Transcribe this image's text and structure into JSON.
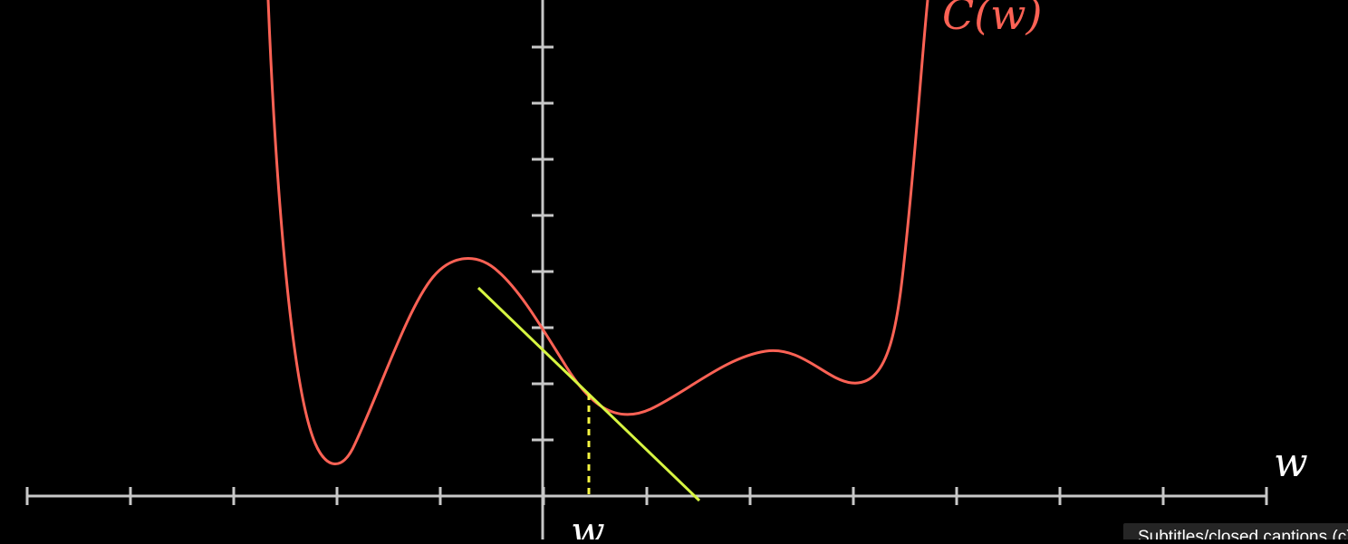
{
  "diagram": {
    "curve_label": "C(w)",
    "x_axis_label": "w",
    "point_label": "w",
    "colors": {
      "background": "#000000",
      "axis": "#c8c8c8",
      "curve": "#fc6255",
      "tangent": "#d7f542",
      "marker": "#f5f542"
    }
  },
  "tooltip": {
    "text": "Subtitles/closed captions (c)"
  }
}
